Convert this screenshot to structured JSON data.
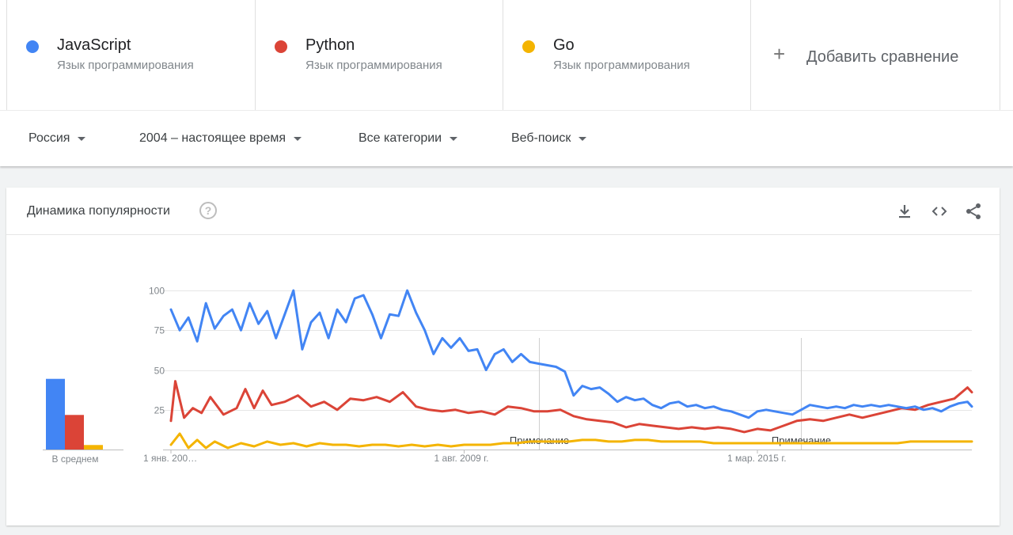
{
  "compare": {
    "terms": [
      {
        "name": "JavaScript",
        "subtitle": "Язык программирования",
        "color": "#4285f4"
      },
      {
        "name": "Python",
        "subtitle": "Язык программирования",
        "color": "#db4437"
      },
      {
        "name": "Go",
        "subtitle": "Язык программирования",
        "color": "#f4b400"
      }
    ],
    "add_label": "Добавить сравнение",
    "add_icon": "plus-icon"
  },
  "filters": {
    "region": "Россия",
    "period": "2004 – настоящее время",
    "category": "Все категории",
    "search_type": "Веб-поиск"
  },
  "card": {
    "title": "Динамика популярности",
    "help_icon": "help-icon",
    "actions": [
      "download-icon",
      "embed-code-icon",
      "share-icon"
    ]
  },
  "chart_data": [
    {
      "type": "bar",
      "xlabel": "В среднем",
      "categories": [
        "JavaScript",
        "Python",
        "Go"
      ],
      "values": [
        47,
        23,
        3
      ],
      "colors": [
        "#4285f4",
        "#db4437",
        "#f4b400"
      ]
    },
    {
      "type": "line",
      "ylim": [
        0,
        100
      ],
      "y_ticks": [
        25,
        50,
        75,
        100
      ],
      "grid": true,
      "x_start": "2004-01",
      "x_end": "2019-04",
      "x_tick_labels": [
        {
          "label": "1 янв. 200…",
          "date": "2004-01"
        },
        {
          "label": "1 авг. 2009 г.",
          "date": "2009-08"
        },
        {
          "label": "1 мар. 2015 г.",
          "date": "2015-03"
        }
      ],
      "notes": [
        {
          "label": "Примечание",
          "date": "2011-01"
        },
        {
          "label": "Примечание",
          "date": "2016-01"
        }
      ],
      "series": [
        {
          "name": "JavaScript",
          "color": "#4285f4",
          "points": [
            [
              "2004-01",
              88
            ],
            [
              "2004-03",
              75
            ],
            [
              "2004-05",
              83
            ],
            [
              "2004-07",
              68
            ],
            [
              "2004-09",
              92
            ],
            [
              "2004-11",
              76
            ],
            [
              "2005-01",
              84
            ],
            [
              "2005-03",
              88
            ],
            [
              "2005-05",
              75
            ],
            [
              "2005-07",
              92
            ],
            [
              "2005-09",
              79
            ],
            [
              "2005-11",
              87
            ],
            [
              "2006-01",
              70
            ],
            [
              "2006-03",
              85
            ],
            [
              "2006-05",
              100
            ],
            [
              "2006-07",
              63
            ],
            [
              "2006-09",
              80
            ],
            [
              "2006-11",
              86
            ],
            [
              "2007-01",
              70
            ],
            [
              "2007-03",
              88
            ],
            [
              "2007-05",
              80
            ],
            [
              "2007-07",
              95
            ],
            [
              "2007-09",
              97
            ],
            [
              "2007-11",
              85
            ],
            [
              "2008-01",
              70
            ],
            [
              "2008-03",
              85
            ],
            [
              "2008-05",
              84
            ],
            [
              "2008-07",
              100
            ],
            [
              "2008-09",
              86
            ],
            [
              "2008-11",
              75
            ],
            [
              "2009-01",
              60
            ],
            [
              "2009-03",
              70
            ],
            [
              "2009-05",
              64
            ],
            [
              "2009-07",
              70
            ],
            [
              "2009-09",
              62
            ],
            [
              "2009-11",
              63
            ],
            [
              "2010-01",
              50
            ],
            [
              "2010-03",
              60
            ],
            [
              "2010-05",
              63
            ],
            [
              "2010-07",
              55
            ],
            [
              "2010-09",
              60
            ],
            [
              "2010-11",
              55
            ],
            [
              "2011-01",
              54
            ],
            [
              "2011-03",
              53
            ],
            [
              "2011-05",
              52
            ],
            [
              "2011-07",
              49
            ],
            [
              "2011-09",
              34
            ],
            [
              "2011-11",
              40
            ],
            [
              "2012-01",
              38
            ],
            [
              "2012-03",
              39
            ],
            [
              "2012-05",
              35
            ],
            [
              "2012-07",
              30
            ],
            [
              "2012-09",
              33
            ],
            [
              "2012-11",
              31
            ],
            [
              "2013-01",
              32
            ],
            [
              "2013-03",
              28
            ],
            [
              "2013-05",
              26
            ],
            [
              "2013-07",
              29
            ],
            [
              "2013-09",
              30
            ],
            [
              "2013-11",
              27
            ],
            [
              "2014-01",
              28
            ],
            [
              "2014-03",
              26
            ],
            [
              "2014-05",
              27
            ],
            [
              "2014-07",
              25
            ],
            [
              "2014-09",
              24
            ],
            [
              "2014-11",
              22
            ],
            [
              "2015-01",
              20
            ],
            [
              "2015-03",
              24
            ],
            [
              "2015-05",
              25
            ],
            [
              "2015-07",
              24
            ],
            [
              "2015-09",
              23
            ],
            [
              "2015-11",
              22
            ],
            [
              "2016-01",
              25
            ],
            [
              "2016-03",
              28
            ],
            [
              "2016-05",
              27
            ],
            [
              "2016-07",
              26
            ],
            [
              "2016-09",
              27
            ],
            [
              "2016-11",
              26
            ],
            [
              "2017-01",
              28
            ],
            [
              "2017-03",
              27
            ],
            [
              "2017-05",
              28
            ],
            [
              "2017-07",
              27
            ],
            [
              "2017-09",
              28
            ],
            [
              "2017-11",
              27
            ],
            [
              "2018-01",
              26
            ],
            [
              "2018-03",
              27
            ],
            [
              "2018-05",
              25
            ],
            [
              "2018-07",
              26
            ],
            [
              "2018-09",
              24
            ],
            [
              "2018-11",
              27
            ],
            [
              "2019-01",
              29
            ],
            [
              "2019-03",
              30
            ],
            [
              "2019-04",
              27
            ]
          ]
        },
        {
          "name": "Python",
          "color": "#db4437",
          "points": [
            [
              "2004-01",
              18
            ],
            [
              "2004-02",
              43
            ],
            [
              "2004-04",
              20
            ],
            [
              "2004-06",
              26
            ],
            [
              "2004-08",
              23
            ],
            [
              "2004-10",
              33
            ],
            [
              "2005-01",
              22
            ],
            [
              "2005-04",
              26
            ],
            [
              "2005-06",
              38
            ],
            [
              "2005-08",
              26
            ],
            [
              "2005-10",
              37
            ],
            [
              "2005-12",
              28
            ],
            [
              "2006-03",
              30
            ],
            [
              "2006-06",
              34
            ],
            [
              "2006-09",
              27
            ],
            [
              "2006-12",
              30
            ],
            [
              "2007-03",
              25
            ],
            [
              "2007-06",
              32
            ],
            [
              "2007-09",
              31
            ],
            [
              "2007-12",
              33
            ],
            [
              "2008-03",
              30
            ],
            [
              "2008-06",
              36
            ],
            [
              "2008-09",
              27
            ],
            [
              "2008-12",
              25
            ],
            [
              "2009-03",
              24
            ],
            [
              "2009-06",
              25
            ],
            [
              "2009-09",
              23
            ],
            [
              "2009-12",
              24
            ],
            [
              "2010-03",
              22
            ],
            [
              "2010-06",
              27
            ],
            [
              "2010-09",
              26
            ],
            [
              "2010-12",
              24
            ],
            [
              "2011-03",
              24
            ],
            [
              "2011-06",
              25
            ],
            [
              "2011-09",
              21
            ],
            [
              "2011-12",
              19
            ],
            [
              "2012-03",
              18
            ],
            [
              "2012-06",
              17
            ],
            [
              "2012-09",
              14
            ],
            [
              "2012-12",
              16
            ],
            [
              "2013-03",
              15
            ],
            [
              "2013-06",
              14
            ],
            [
              "2013-09",
              13
            ],
            [
              "2013-12",
              14
            ],
            [
              "2014-03",
              13
            ],
            [
              "2014-06",
              14
            ],
            [
              "2014-09",
              13
            ],
            [
              "2014-12",
              11
            ],
            [
              "2015-03",
              13
            ],
            [
              "2015-06",
              12
            ],
            [
              "2015-09",
              15
            ],
            [
              "2015-12",
              18
            ],
            [
              "2016-03",
              19
            ],
            [
              "2016-06",
              18
            ],
            [
              "2016-09",
              20
            ],
            [
              "2016-12",
              22
            ],
            [
              "2017-03",
              20
            ],
            [
              "2017-06",
              22
            ],
            [
              "2017-09",
              24
            ],
            [
              "2017-12",
              26
            ],
            [
              "2018-03",
              25
            ],
            [
              "2018-06",
              28
            ],
            [
              "2018-09",
              30
            ],
            [
              "2018-12",
              32
            ],
            [
              "2019-03",
              39
            ],
            [
              "2019-04",
              36
            ]
          ]
        },
        {
          "name": "Go",
          "color": "#f4b400",
          "points": [
            [
              "2004-01",
              3
            ],
            [
              "2004-03",
              10
            ],
            [
              "2004-05",
              1
            ],
            [
              "2004-07",
              6
            ],
            [
              "2004-09",
              1
            ],
            [
              "2004-11",
              5
            ],
            [
              "2005-02",
              1
            ],
            [
              "2005-05",
              4
            ],
            [
              "2005-08",
              2
            ],
            [
              "2005-11",
              5
            ],
            [
              "2006-02",
              3
            ],
            [
              "2006-05",
              4
            ],
            [
              "2006-08",
              2
            ],
            [
              "2006-11",
              4
            ],
            [
              "2007-02",
              3
            ],
            [
              "2007-05",
              3
            ],
            [
              "2007-08",
              2
            ],
            [
              "2007-11",
              3
            ],
            [
              "2008-02",
              3
            ],
            [
              "2008-05",
              2
            ],
            [
              "2008-08",
              3
            ],
            [
              "2008-11",
              2
            ],
            [
              "2009-02",
              3
            ],
            [
              "2009-05",
              2
            ],
            [
              "2009-08",
              3
            ],
            [
              "2009-11",
              3
            ],
            [
              "2010-02",
              3
            ],
            [
              "2010-05",
              4
            ],
            [
              "2010-08",
              4
            ],
            [
              "2010-11",
              5
            ],
            [
              "2011-02",
              5
            ],
            [
              "2011-05",
              5
            ],
            [
              "2011-08",
              5
            ],
            [
              "2011-11",
              6
            ],
            [
              "2012-02",
              6
            ],
            [
              "2012-05",
              5
            ],
            [
              "2012-08",
              5
            ],
            [
              "2012-11",
              6
            ],
            [
              "2013-02",
              6
            ],
            [
              "2013-05",
              5
            ],
            [
              "2013-08",
              5
            ],
            [
              "2013-11",
              5
            ],
            [
              "2014-02",
              5
            ],
            [
              "2014-05",
              4
            ],
            [
              "2014-08",
              4
            ],
            [
              "2014-11",
              4
            ],
            [
              "2015-02",
              4
            ],
            [
              "2015-05",
              4
            ],
            [
              "2015-08",
              4
            ],
            [
              "2015-11",
              4
            ],
            [
              "2016-02",
              4
            ],
            [
              "2016-05",
              4
            ],
            [
              "2016-08",
              4
            ],
            [
              "2016-11",
              4
            ],
            [
              "2017-02",
              4
            ],
            [
              "2017-05",
              4
            ],
            [
              "2017-08",
              4
            ],
            [
              "2017-11",
              4
            ],
            [
              "2018-02",
              5
            ],
            [
              "2018-05",
              5
            ],
            [
              "2018-08",
              5
            ],
            [
              "2018-11",
              5
            ],
            [
              "2019-02",
              5
            ],
            [
              "2019-04",
              5
            ]
          ]
        }
      ]
    }
  ]
}
